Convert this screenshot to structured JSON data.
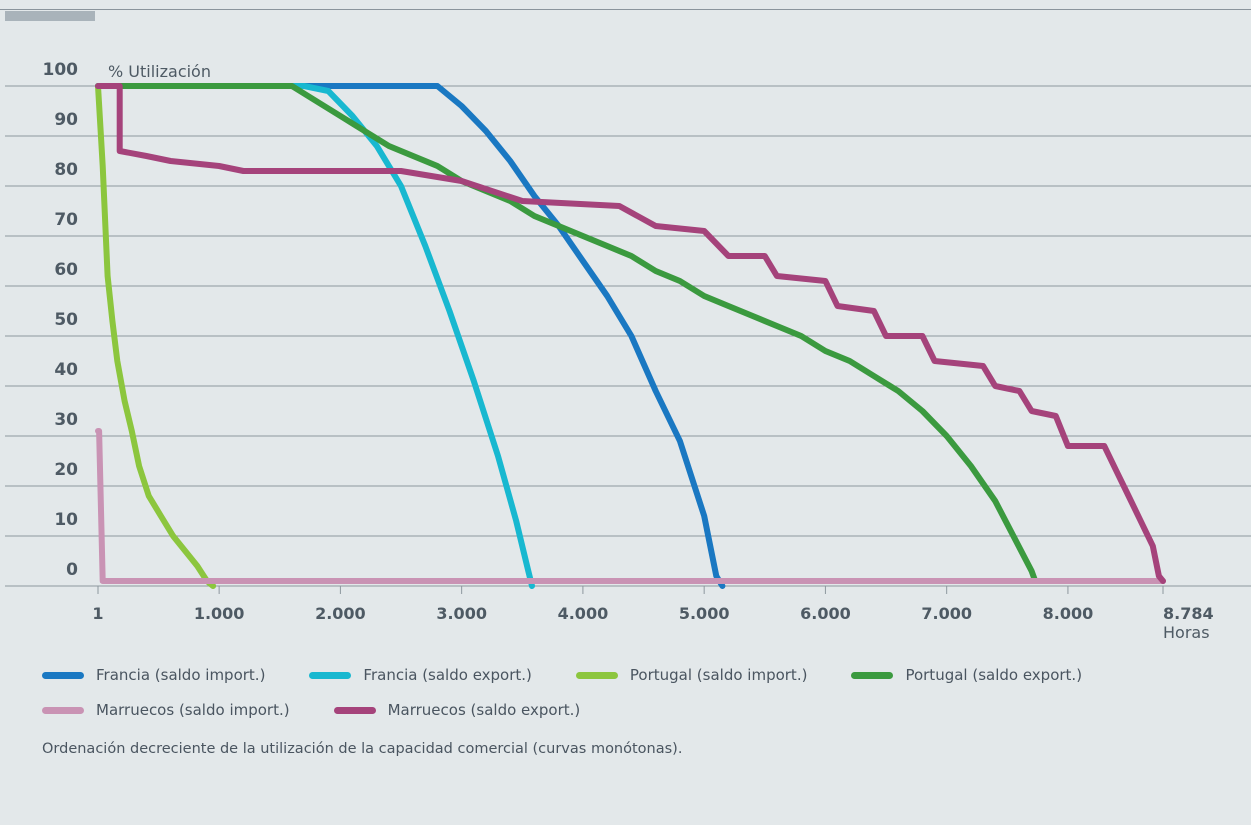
{
  "chart_data": {
    "type": "line",
    "title": "",
    "ylabel": "% Utilización",
    "xlabel": "Horas",
    "xlim": [
      1,
      8784
    ],
    "ylim": [
      0,
      100
    ],
    "x_ticks": [
      {
        "value": 1,
        "label": "1"
      },
      {
        "value": 1000,
        "label": "1.000"
      },
      {
        "value": 2000,
        "label": "2.000"
      },
      {
        "value": 3000,
        "label": "3.000"
      },
      {
        "value": 4000,
        "label": "4.000"
      },
      {
        "value": 5000,
        "label": "5.000"
      },
      {
        "value": 6000,
        "label": "6.000"
      },
      {
        "value": 7000,
        "label": "7.000"
      },
      {
        "value": 8000,
        "label": "8.000"
      },
      {
        "value": 8784,
        "label": "8.784"
      }
    ],
    "y_ticks": [
      {
        "value": 0,
        "label": "0"
      },
      {
        "value": 10,
        "label": "10"
      },
      {
        "value": 20,
        "label": "20"
      },
      {
        "value": 30,
        "label": "30"
      },
      {
        "value": 40,
        "label": "40"
      },
      {
        "value": 50,
        "label": "50"
      },
      {
        "value": 60,
        "label": "60"
      },
      {
        "value": 70,
        "label": "70"
      },
      {
        "value": 80,
        "label": "80"
      },
      {
        "value": 90,
        "label": "90"
      },
      {
        "value": 100,
        "label": "100"
      }
    ],
    "grid": true,
    "legend_position": "bottom",
    "series": [
      {
        "name": "Francia (saldo import.)",
        "color": "#1a78c2",
        "points": [
          [
            1,
            100
          ],
          [
            2800,
            100
          ],
          [
            3000,
            96
          ],
          [
            3200,
            91
          ],
          [
            3400,
            85
          ],
          [
            3600,
            78
          ],
          [
            3800,
            72
          ],
          [
            4000,
            65
          ],
          [
            4200,
            58
          ],
          [
            4400,
            50
          ],
          [
            4600,
            39
          ],
          [
            4800,
            29
          ],
          [
            5000,
            14
          ],
          [
            5100,
            2
          ],
          [
            5150,
            0
          ]
        ]
      },
      {
        "name": "Francia (saldo export.)",
        "color": "#18b8d0",
        "points": [
          [
            1,
            100
          ],
          [
            1700,
            100
          ],
          [
            1900,
            99
          ],
          [
            2100,
            94
          ],
          [
            2300,
            88
          ],
          [
            2500,
            80
          ],
          [
            2700,
            68
          ],
          [
            2900,
            55
          ],
          [
            3100,
            41
          ],
          [
            3300,
            26
          ],
          [
            3450,
            13
          ],
          [
            3550,
            3
          ],
          [
            3580,
            0
          ]
        ]
      },
      {
        "name": "Portugal (saldo import.)",
        "color": "#8cc63e",
        "points": [
          [
            1,
            100
          ],
          [
            40,
            84
          ],
          [
            80,
            62
          ],
          [
            120,
            53
          ],
          [
            160,
            45
          ],
          [
            220,
            37
          ],
          [
            280,
            31
          ],
          [
            340,
            24
          ],
          [
            420,
            18
          ],
          [
            520,
            14
          ],
          [
            620,
            10
          ],
          [
            720,
            7
          ],
          [
            820,
            4
          ],
          [
            900,
            1
          ],
          [
            950,
            0
          ]
        ]
      },
      {
        "name": "Portugal (saldo export.)",
        "color": "#3b9a3f",
        "points": [
          [
            1,
            100
          ],
          [
            1600,
            100
          ],
          [
            1800,
            97
          ],
          [
            2000,
            94
          ],
          [
            2200,
            91
          ],
          [
            2400,
            88
          ],
          [
            2600,
            86
          ],
          [
            2800,
            84
          ],
          [
            3000,
            81
          ],
          [
            3200,
            79
          ],
          [
            3400,
            77
          ],
          [
            3600,
            74
          ],
          [
            3800,
            72
          ],
          [
            4000,
            70
          ],
          [
            4200,
            68
          ],
          [
            4400,
            66
          ],
          [
            4600,
            63
          ],
          [
            4800,
            61
          ],
          [
            5000,
            58
          ],
          [
            5200,
            56
          ],
          [
            5400,
            54
          ],
          [
            5600,
            52
          ],
          [
            5800,
            50
          ],
          [
            6000,
            47
          ],
          [
            6200,
            45
          ],
          [
            6400,
            42
          ],
          [
            6600,
            39
          ],
          [
            6800,
            35
          ],
          [
            7000,
            30
          ],
          [
            7200,
            24
          ],
          [
            7400,
            17
          ],
          [
            7550,
            10
          ],
          [
            7700,
            3
          ],
          [
            7730,
            1
          ]
        ]
      },
      {
        "name": "Marruecos (saldo import.)",
        "color": "#c993b4",
        "points": [
          [
            1,
            31
          ],
          [
            10,
            31
          ],
          [
            40,
            1
          ],
          [
            8784,
            1
          ]
        ]
      },
      {
        "name": "Marruecos (saldo export.)",
        "color": "#a5437b",
        "points": [
          [
            1,
            100
          ],
          [
            180,
            100
          ],
          [
            180,
            87
          ],
          [
            400,
            86
          ],
          [
            600,
            85
          ],
          [
            1000,
            84
          ],
          [
            1200,
            83
          ],
          [
            2500,
            83
          ],
          [
            3000,
            81
          ],
          [
            3500,
            77
          ],
          [
            4300,
            76
          ],
          [
            4600,
            72
          ],
          [
            5000,
            71
          ],
          [
            5200,
            66
          ],
          [
            5500,
            66
          ],
          [
            5600,
            62
          ],
          [
            6000,
            61
          ],
          [
            6100,
            56
          ],
          [
            6400,
            55
          ],
          [
            6500,
            50
          ],
          [
            6800,
            50
          ],
          [
            6900,
            45
          ],
          [
            7300,
            44
          ],
          [
            7400,
            40
          ],
          [
            7600,
            39
          ],
          [
            7700,
            35
          ],
          [
            7900,
            34
          ],
          [
            8000,
            28
          ],
          [
            8300,
            28
          ],
          [
            8400,
            23
          ],
          [
            8500,
            18
          ],
          [
            8600,
            13
          ],
          [
            8700,
            8
          ],
          [
            8750,
            2
          ],
          [
            8784,
            1
          ]
        ]
      }
    ]
  },
  "caption": "Ordenación decreciente de la utilización de la capacidad comercial (curvas monótonas)."
}
